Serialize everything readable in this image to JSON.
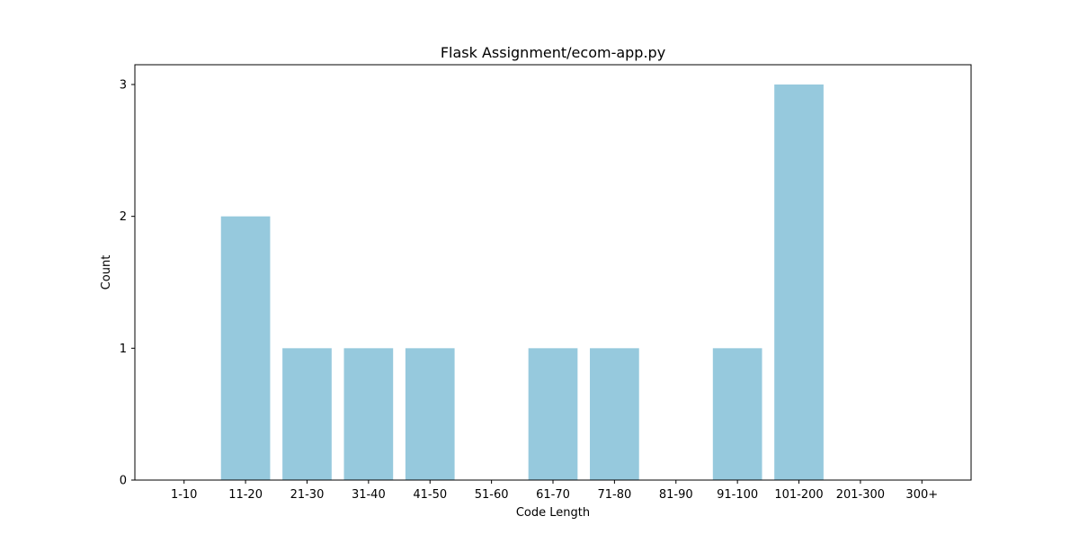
{
  "chart_data": {
    "type": "bar",
    "title": "Flask Assignment/ecom-app.py",
    "xlabel": "Code Length",
    "ylabel": "Count",
    "categories": [
      "1-10",
      "11-20",
      "21-30",
      "31-40",
      "41-50",
      "51-60",
      "61-70",
      "71-80",
      "81-90",
      "91-100",
      "101-200",
      "201-300",
      "300+"
    ],
    "values": [
      0,
      2,
      1,
      1,
      1,
      0,
      1,
      1,
      0,
      1,
      3,
      0,
      0
    ],
    "ylim": [
      0,
      3.15
    ],
    "yticks": [
      0,
      1,
      2,
      3
    ],
    "grid": false,
    "legend": "none",
    "bar_color": "#96c9dd"
  }
}
